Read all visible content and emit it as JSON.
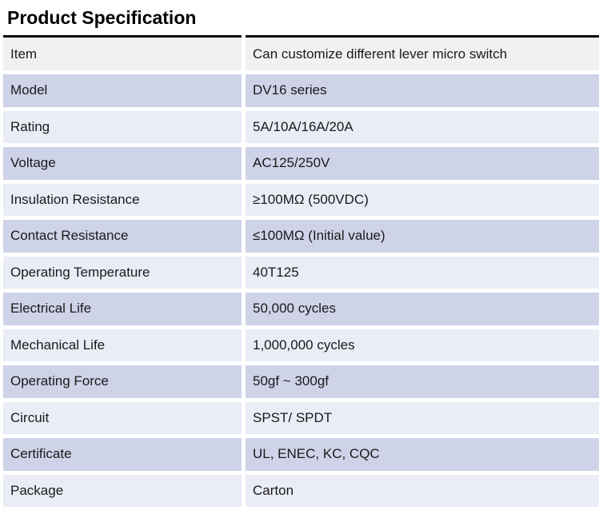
{
  "page": {
    "title": "Product Specification"
  },
  "colors": {
    "header_row_bg": "#f1f1f1",
    "light_row_bg": "#eaedf6",
    "accent_row_bg": "#cfd3e8",
    "divider": "#000000",
    "text": "#1a1a1a"
  },
  "table": {
    "rows": [
      {
        "label": "Item",
        "value": "Can customize different lever micro switch",
        "tone": "gray"
      },
      {
        "label": "Model",
        "value": "DV16 series",
        "tone": "lavender"
      },
      {
        "label": "Rating",
        "value": "5A/10A/16A/20A",
        "tone": "light"
      },
      {
        "label": "Voltage",
        "value": "AC125/250V",
        "tone": "lavender"
      },
      {
        "label": "Insulation Resistance",
        "value": "≥100MΩ (500VDC)",
        "tone": "light"
      },
      {
        "label": "Contact Resistance",
        "value": "≤100MΩ (Initial value)",
        "tone": "lavender"
      },
      {
        "label": "Operating Temperature",
        "value": "40T125",
        "tone": "light"
      },
      {
        "label": "Electrical Life",
        "value": "50,000 cycles",
        "tone": "lavender"
      },
      {
        "label": "Mechanical Life",
        "value": "1,000,000 cycles",
        "tone": "light"
      },
      {
        "label": "Operating Force",
        "value": "50gf ~ 300gf",
        "tone": "lavender"
      },
      {
        "label": "Circuit",
        "value": "SPST/ SPDT",
        "tone": "light"
      },
      {
        "label": "Certificate",
        "value": "UL, ENEC, KC, CQC",
        "tone": "lavender"
      },
      {
        "label": "Package",
        "value": "Carton",
        "tone": "light"
      }
    ]
  }
}
